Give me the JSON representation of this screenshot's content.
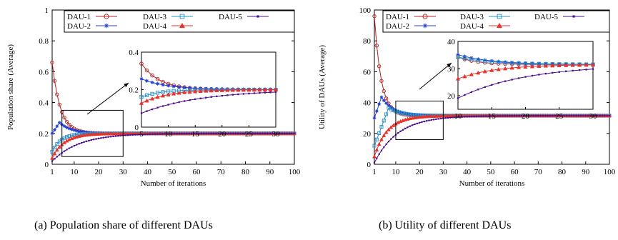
{
  "chart_data": [
    {
      "type": "line",
      "caption": "(a) Population share of different DAUs",
      "xlabel": "Number of iterations",
      "ylabel": "Population share (Average)",
      "xlim": [
        1,
        100
      ],
      "ylim": [
        0,
        1
      ],
      "xticks": [
        "1",
        "10",
        "20",
        "30",
        "40",
        "50",
        "60",
        "70",
        "80",
        "90",
        "100"
      ],
      "yticks": [
        "0",
        "0.2",
        "0.4",
        "0.6",
        "0.8",
        "1"
      ],
      "legend": [
        "DAU-1",
        "DAU-2",
        "DAU-3",
        "DAU-4",
        "DAU-5"
      ],
      "legend_position": "top",
      "inset": {
        "xlim": [
          5,
          30
        ],
        "ylim": [
          0,
          0.4
        ],
        "xticks": [
          "5",
          "10",
          "15",
          "20",
          "25",
          "30"
        ],
        "yticks": [
          "0",
          "0.2",
          "0.4"
        ],
        "zoom_box": {
          "x": [
            5,
            30
          ],
          "y": [
            0.05,
            0.35
          ]
        }
      },
      "series": [
        {
          "name": "DAU-1",
          "color": "#b22222",
          "marker": "circle",
          "start": 0.66,
          "end": 0.2,
          "rate": 0.3
        },
        {
          "name": "DAU-2",
          "color": "#1f3fd6",
          "marker": "star",
          "start": 0.2,
          "end": 0.2,
          "peak": 0.27,
          "peak_at": 4
        },
        {
          "name": "DAU-3",
          "color": "#2a8fc8",
          "marker": "square",
          "start": 0.08,
          "end": 0.2,
          "rate": 0.28
        },
        {
          "name": "DAU-4",
          "color": "#e8322a",
          "marker": "triangle",
          "start": 0.04,
          "end": 0.2,
          "rate": 0.2
        },
        {
          "name": "DAU-5",
          "color": "#4b0f8c",
          "marker": "smallsquare",
          "start": 0.02,
          "end": 0.2,
          "rate": 0.09
        }
      ]
    },
    {
      "type": "line",
      "caption": "(b) Utility of different DAUs",
      "xlabel": "Number of iterations",
      "ylabel": "Utility of DAUs (Average)",
      "xlim": [
        1,
        100
      ],
      "ylim": [
        0,
        100
      ],
      "xticks": [
        "1",
        "10",
        "20",
        "30",
        "40",
        "50",
        "60",
        "70",
        "80",
        "90",
        "100"
      ],
      "yticks": [
        "0",
        "20",
        "40",
        "60",
        "80",
        "100"
      ],
      "legend": [
        "DAU-1",
        "DAU-2",
        "DAU-3",
        "DAU-4",
        "DAU-5"
      ],
      "legend_position": "top",
      "inset": {
        "xlim": [
          10,
          30
        ],
        "ylim": [
          15,
          40
        ],
        "xticks": [
          "10",
          "15",
          "20",
          "25",
          "30"
        ],
        "yticks": [
          "20",
          "30",
          "40"
        ],
        "zoom_box": {
          "x": [
            10,
            30
          ],
          "y": [
            16,
            41
          ]
        }
      },
      "series": [
        {
          "name": "DAU-1",
          "color": "#b22222",
          "marker": "circle",
          "start": 96,
          "end": 31.5,
          "rate": 0.35
        },
        {
          "name": "DAU-2",
          "color": "#1f3fd6",
          "marker": "star",
          "start": 30,
          "end": 31.5,
          "peak": 43.5,
          "peak_at": 4
        },
        {
          "name": "DAU-3",
          "color": "#2a8fc8",
          "marker": "square",
          "start": 12,
          "end": 31.5,
          "peak": 36.5,
          "peak_at": 7
        },
        {
          "name": "DAU-4",
          "color": "#e8322a",
          "marker": "triangle",
          "start": 5,
          "end": 31.5,
          "rate": 0.18
        },
        {
          "name": "DAU-5",
          "color": "#4b0f8c",
          "marker": "smallsquare",
          "start": 1,
          "end": 31.5,
          "rate": 0.1
        }
      ]
    }
  ]
}
